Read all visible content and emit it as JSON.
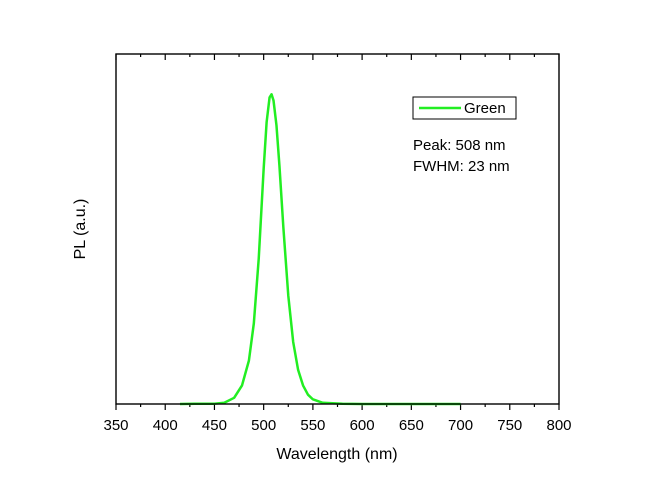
{
  "chart_data": {
    "type": "line",
    "title": "",
    "xlabel": "Wavelength (nm)",
    "ylabel": "PL (a.u.)",
    "xlim": [
      350,
      800
    ],
    "ylim": [
      0,
      1.13
    ],
    "x_ticks": [
      "350",
      "400",
      "450",
      "500",
      "550",
      "600",
      "650",
      "700",
      "750",
      "800"
    ],
    "y_ticks_labeled": false,
    "grid": false,
    "legend": {
      "placement": "top-right",
      "entries": [
        "Green"
      ]
    },
    "annotations": [
      "Peak: 508 nm",
      "FWHM: 23 nm"
    ],
    "series": [
      {
        "name": "Green",
        "color": "#22ee22",
        "x": [
          415,
          430,
          440,
          450,
          460,
          470,
          478,
          485,
          490,
          495,
          500,
          503,
          506,
          508,
          510,
          513,
          516,
          520,
          525,
          530,
          535,
          540,
          545,
          550,
          560,
          580,
          600,
          650,
          700
        ],
        "y": [
          0.0,
          0.001,
          0.001,
          0.001,
          0.004,
          0.02,
          0.06,
          0.14,
          0.26,
          0.47,
          0.76,
          0.91,
          0.99,
          1.0,
          0.98,
          0.9,
          0.77,
          0.57,
          0.35,
          0.2,
          0.11,
          0.06,
          0.03,
          0.015,
          0.004,
          0.001,
          0.0,
          0.0,
          0.0
        ]
      }
    ]
  }
}
